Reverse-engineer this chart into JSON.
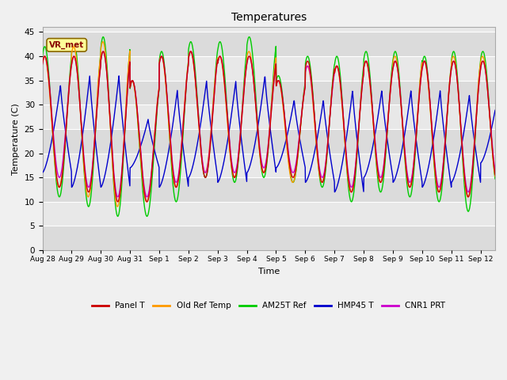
{
  "title": "Temperatures",
  "xlabel": "Time",
  "ylabel": "Temperature (C)",
  "ylim": [
    0,
    46
  ],
  "yticks": [
    0,
    5,
    10,
    15,
    20,
    25,
    30,
    35,
    40,
    45
  ],
  "series_labels": [
    "Panel T",
    "Old Ref Temp",
    "AM25T Ref",
    "HMP45 T",
    "CNR1 PRT"
  ],
  "series_colors": [
    "#cc0000",
    "#ff9900",
    "#00cc00",
    "#0000cc",
    "#cc00cc"
  ],
  "background_inner_light": "#e8e8e8",
  "background_inner_dark": "#d8d8d8",
  "background_outer": "#f0f0f0",
  "grid_color": "#ffffff",
  "xticklabels": [
    "Aug 28",
    "Aug 29",
    "Aug 30",
    "Aug 31",
    "Sep 1",
    "Sep 2",
    "Sep 3",
    "Sep 4",
    "Sep 5",
    "Sep 6",
    "Sep 7",
    "Sep 8",
    "Sep 9",
    "Sep 10",
    "Sep 11",
    "Sep 12"
  ],
  "num_days": 15.5,
  "points_per_day": 144,
  "day_maxes_green": [
    42,
    43,
    44,
    35,
    41,
    43,
    43,
    44,
    36,
    40,
    40,
    41,
    41,
    40,
    41,
    41
  ],
  "day_mins_green": [
    11,
    9,
    7,
    7,
    10,
    15,
    14,
    15,
    14,
    13,
    10,
    12,
    11,
    10,
    8,
    13
  ],
  "day_maxes_red": [
    40,
    40,
    41,
    35,
    40,
    41,
    40,
    40,
    35,
    39,
    38,
    39,
    39,
    39,
    39,
    39
  ],
  "day_mins_red": [
    13,
    12,
    10,
    10,
    13,
    15,
    15,
    16,
    15,
    14,
    12,
    14,
    13,
    12,
    11,
    14
  ],
  "day_maxes_orange": [
    40,
    42,
    43,
    35,
    40,
    41,
    40,
    41,
    35,
    38,
    38,
    39,
    40,
    39,
    40,
    40
  ],
  "day_mins_orange": [
    13,
    11,
    9,
    10,
    13,
    16,
    15,
    16,
    14,
    14,
    12,
    14,
    13,
    12,
    11,
    14
  ],
  "day_maxes_blue": [
    34,
    36,
    36,
    27,
    33,
    35,
    35,
    36,
    31,
    31,
    33,
    33,
    33,
    33,
    32,
    33
  ],
  "day_mins_blue": [
    16,
    13,
    13,
    17,
    13,
    15,
    14,
    16,
    17,
    14,
    12,
    15,
    14,
    13,
    14,
    18
  ],
  "day_maxes_purple": [
    40,
    40,
    41,
    35,
    40,
    41,
    40,
    40,
    35,
    38,
    38,
    39,
    39,
    39,
    39,
    39
  ],
  "day_mins_purple": [
    15,
    13,
    11,
    11,
    14,
    16,
    16,
    17,
    16,
    15,
    13,
    15,
    14,
    13,
    12,
    15
  ]
}
